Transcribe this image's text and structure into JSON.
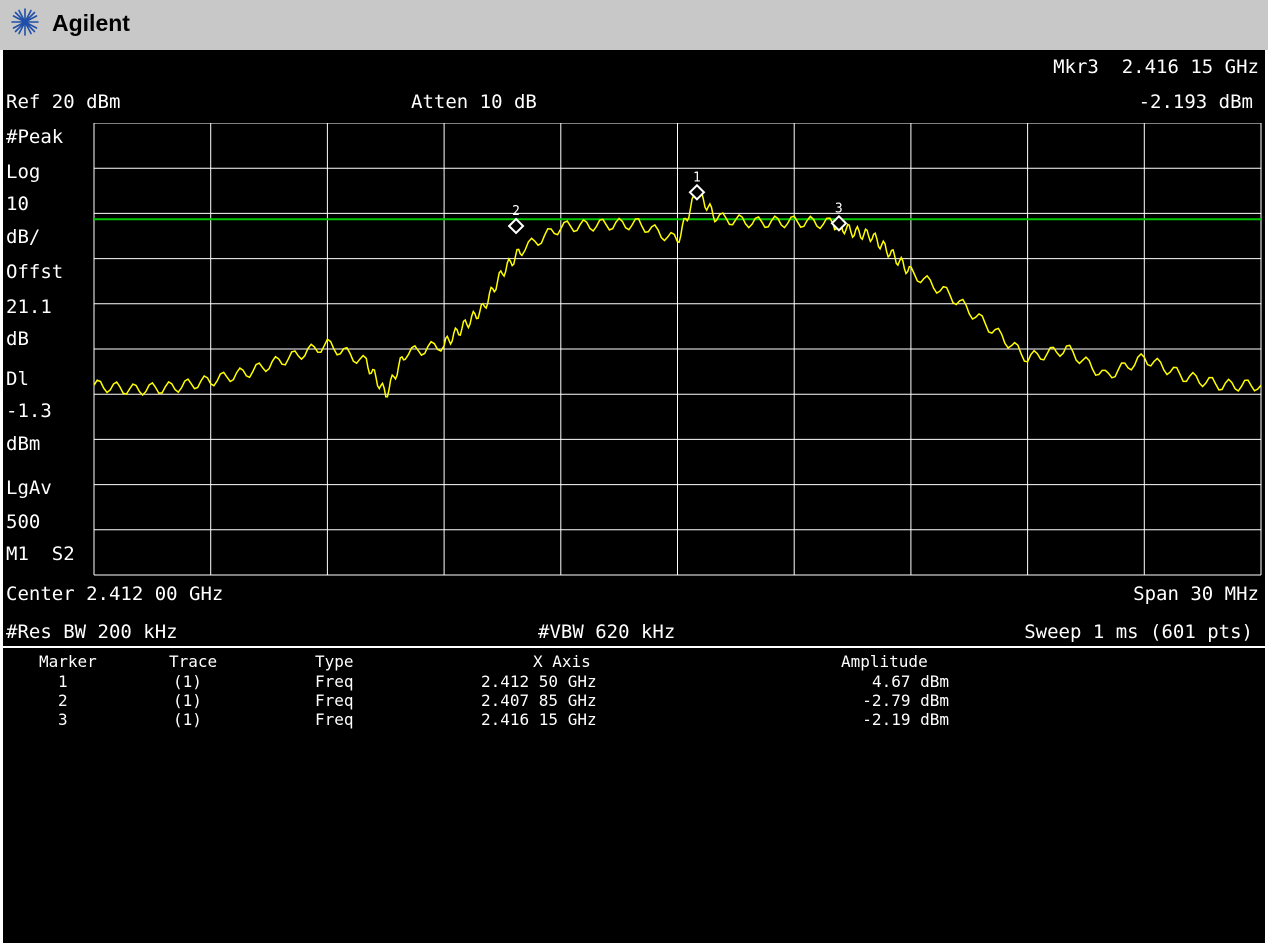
{
  "brand": {
    "name": "Agilent",
    "logo_icon": "agilent-spark-icon"
  },
  "header": {
    "marker_label": "Mkr3",
    "marker_freq": "2.416 15 GHz",
    "ref_level": "Ref 20 dBm",
    "attenuation": "Atten 10 dB",
    "marker_amp": "-2.193 dBm"
  },
  "side_labels": [
    "#Peak",
    "Log",
    "10",
    "dB/",
    "Offst",
    "21.1",
    "dB",
    "Dl",
    "-1.3",
    "dBm",
    "LgAv",
    "500",
    "M1  S2"
  ],
  "footer": {
    "center": "Center 2.412 00 GHz",
    "span": "Span 30 MHz",
    "res_bw": "#Res BW 200 kHz",
    "vbw": "#VBW 620 kHz",
    "sweep": "Sweep 1 ms (601 pts)"
  },
  "marker_table": {
    "headers": [
      "Marker",
      "Trace",
      "Type",
      "X Axis",
      "Amplitude"
    ],
    "rows": [
      [
        "1",
        "(1)",
        "Freq",
        "2.412 50 GHz",
        "4.67 dBm"
      ],
      [
        "2",
        "(1)",
        "Freq",
        "2.407 85 GHz",
        "-2.79 dBm"
      ],
      [
        "3",
        "(1)",
        "Freq",
        "2.416 15 GHz",
        "-2.19 dBm"
      ]
    ]
  },
  "colors": {
    "trace": "#ffff00",
    "display_line": "#00c800",
    "grid": "#ffffff",
    "background": "#000000"
  },
  "chart_data": {
    "type": "line",
    "x_unit": "GHz",
    "y_unit": "dBm",
    "xlim": [
      2.397,
      2.427
    ],
    "ylim": [
      -80,
      20
    ],
    "grid": true,
    "display_line": -1.3,
    "markers": [
      {
        "label": "1",
        "x": 2.4125,
        "y": 4.67
      },
      {
        "label": "2",
        "x": 2.40785,
        "y": -2.79
      },
      {
        "label": "3",
        "x": 2.41615,
        "y": -2.19
      }
    ],
    "series": [
      {
        "x": [
          2.397,
          2.398,
          2.399,
          2.4,
          2.401,
          2.402,
          2.403,
          2.404,
          2.4045,
          2.405,
          2.406,
          2.4065,
          2.407,
          2.4075,
          2.408,
          2.409,
          2.41,
          2.411,
          2.412,
          2.4125,
          2.413,
          2.414,
          2.415,
          2.416,
          2.4165,
          2.417,
          2.4175,
          2.418,
          2.419,
          2.42,
          2.421,
          2.422,
          2.423,
          2.424,
          2.425,
          2.426,
          2.427
        ],
        "y": [
          -38,
          -39,
          -38.5,
          -37,
          -35,
          -32,
          -29,
          -33,
          -40,
          -31,
          -29,
          -25,
          -21,
          -13,
          -8,
          -3,
          -2.5,
          -2.3,
          -6,
          4.7,
          -1,
          -2,
          -1.8,
          -2.2,
          -4,
          -5,
          -9,
          -13,
          -18,
          -25,
          -32,
          -30,
          -36,
          -32,
          -36,
          -38,
          -38
        ]
      }
    ]
  }
}
